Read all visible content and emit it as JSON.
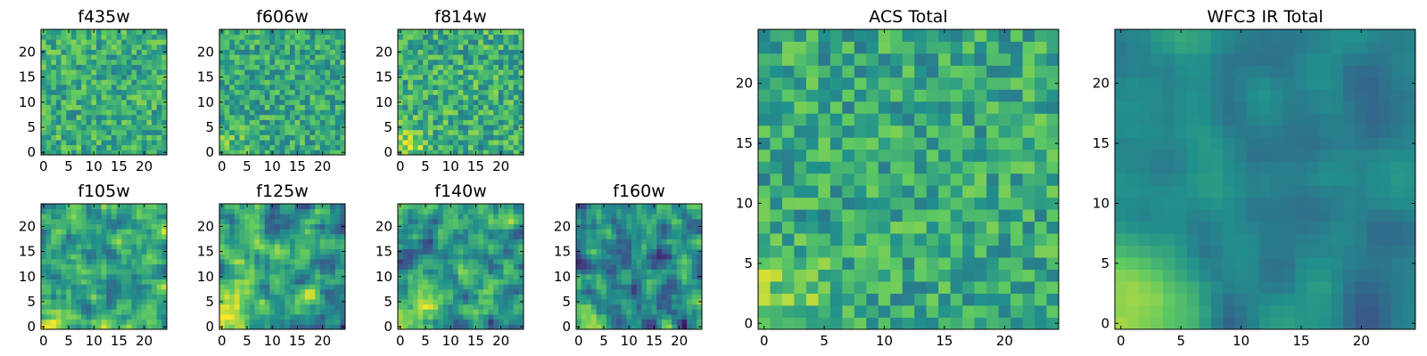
{
  "figure": {
    "kind": "image mosaic of pixel-value heatmaps (viridis colormap)"
  },
  "colors": {
    "viridis": [
      "#440154",
      "#3b528b",
      "#21918c",
      "#5ec962",
      "#fde725"
    ],
    "axes": "#000000",
    "background": "#ffffff"
  },
  "chart_data": [
    {
      "type": "heatmap",
      "id": "f435w",
      "title": "f435w",
      "size": 25,
      "xticks": [
        "0",
        "5",
        "10",
        "15",
        "20"
      ],
      "yticks": [
        "0",
        "5",
        "10",
        "15",
        "20"
      ],
      "xlim": [
        0,
        24
      ],
      "ylim": [
        0,
        24
      ],
      "colormap": "viridis",
      "seed": 11,
      "smooth": 0,
      "base": 0.62,
      "noise": 0.2,
      "corner": 0.05
    },
    {
      "type": "heatmap",
      "id": "f606w",
      "title": "f606w",
      "size": 25,
      "xticks": [
        "0",
        "5",
        "10",
        "15",
        "20"
      ],
      "yticks": [
        "0",
        "5",
        "10",
        "15",
        "20"
      ],
      "xlim": [
        0,
        24
      ],
      "ylim": [
        0,
        24
      ],
      "colormap": "viridis",
      "seed": 23,
      "smooth": 0,
      "base": 0.6,
      "noise": 0.2,
      "corner": 0.15
    },
    {
      "type": "heatmap",
      "id": "f814w",
      "title": "f814w",
      "size": 25,
      "xticks": [
        "0",
        "5",
        "10",
        "15",
        "20"
      ],
      "yticks": [
        "0",
        "5",
        "10",
        "15",
        "20"
      ],
      "xlim": [
        0,
        24
      ],
      "ylim": [
        0,
        24
      ],
      "colormap": "viridis",
      "seed": 37,
      "smooth": 0,
      "base": 0.62,
      "noise": 0.22,
      "corner": 0.25
    },
    {
      "type": "heatmap",
      "id": "f105w",
      "title": "f105w",
      "size": 25,
      "xticks": [
        "0",
        "5",
        "10",
        "15",
        "20"
      ],
      "yticks": [
        "0",
        "5",
        "10",
        "15",
        "20"
      ],
      "xlim": [
        0,
        24
      ],
      "ylim": [
        0,
        24
      ],
      "colormap": "viridis",
      "seed": 41,
      "smooth": 1,
      "base": 0.58,
      "noise": 0.24,
      "corner": 0.4
    },
    {
      "type": "heatmap",
      "id": "f125w",
      "title": "f125w",
      "size": 25,
      "xticks": [
        "0",
        "5",
        "10",
        "15",
        "20"
      ],
      "yticks": [
        "0",
        "5",
        "10",
        "15",
        "20"
      ],
      "xlim": [
        0,
        24
      ],
      "ylim": [
        0,
        24
      ],
      "colormap": "viridis",
      "seed": 53,
      "smooth": 1,
      "base": 0.58,
      "noise": 0.24,
      "corner": 0.45
    },
    {
      "type": "heatmap",
      "id": "f140w",
      "title": "f140w",
      "size": 25,
      "xticks": [
        "0",
        "5",
        "10",
        "15",
        "20"
      ],
      "yticks": [
        "0",
        "5",
        "10",
        "15",
        "20"
      ],
      "xlim": [
        0,
        24
      ],
      "ylim": [
        0,
        24
      ],
      "colormap": "viridis",
      "seed": 67,
      "smooth": 1,
      "base": 0.56,
      "noise": 0.25,
      "corner": 0.45
    },
    {
      "type": "heatmap",
      "id": "f160w",
      "title": "f160w",
      "size": 25,
      "xticks": [
        "0",
        "5",
        "10",
        "15",
        "20"
      ],
      "yticks": [
        "0",
        "5",
        "10",
        "15",
        "20"
      ],
      "xlim": [
        0,
        24
      ],
      "ylim": [
        0,
        24
      ],
      "colormap": "viridis",
      "seed": 79,
      "smooth": 1,
      "base": 0.48,
      "noise": 0.26,
      "corner": 0.5
    },
    {
      "type": "heatmap",
      "id": "acs_total",
      "title": "ACS Total",
      "size": 25,
      "xticks": [
        "0",
        "5",
        "10",
        "15",
        "20"
      ],
      "yticks": [
        "0",
        "5",
        "10",
        "15",
        "20"
      ],
      "xlim": [
        0,
        24
      ],
      "ylim": [
        0,
        24
      ],
      "colormap": "viridis",
      "seed": 97,
      "smooth": 0,
      "base": 0.6,
      "noise": 0.2,
      "corner": 0.25
    },
    {
      "type": "heatmap",
      "id": "wfc3_ir_total",
      "title": "WFC3 IR Total",
      "size": 25,
      "xticks": [
        "0",
        "5",
        "10",
        "15",
        "20"
      ],
      "yticks": [
        "0",
        "5",
        "10",
        "15",
        "20"
      ],
      "xlim": [
        0,
        24
      ],
      "ylim": [
        0,
        24
      ],
      "colormap": "viridis",
      "seed": 131,
      "smooth": 2,
      "base": 0.44,
      "noise": 0.14,
      "corner": 0.55
    }
  ]
}
